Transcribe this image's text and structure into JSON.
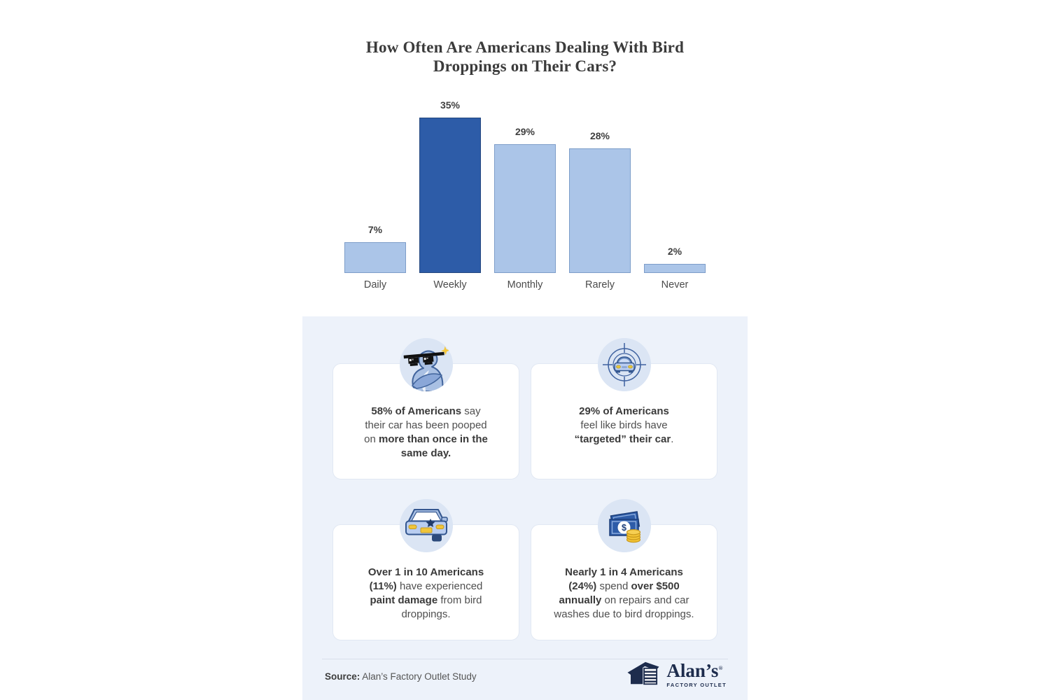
{
  "chart_data": {
    "type": "bar",
    "title": "How Often Are Americans Dealing With Bird Droppings on Their Cars?",
    "categories": [
      "Daily",
      "Weekly",
      "Monthly",
      "Rarely",
      "Never"
    ],
    "values": [
      7,
      35,
      29,
      28,
      2
    ],
    "value_labels": [
      "7%",
      "35%",
      "29%",
      "28%",
      "2%"
    ],
    "highlight_index": 1,
    "bar_color": "#abc5e8",
    "bar_border": "#7d9dc9",
    "highlight_color": "#2d5ca8",
    "highlight_border": "#24477e",
    "xlabel": "",
    "ylabel": "",
    "ylim": [
      0,
      35
    ],
    "grid": false,
    "legend": false
  },
  "cards": [
    {
      "icon": "pigeon-sunglasses-icon",
      "segments": [
        {
          "t": "58% of Americans",
          "b": true
        },
        {
          "t": " say",
          "b": false,
          "br": true
        },
        {
          "t": "their car has been pooped",
          "b": false,
          "br": true
        },
        {
          "t": "on ",
          "b": false
        },
        {
          "t": "more than once in the",
          "b": true,
          "br": true
        },
        {
          "t": "same day.",
          "b": true
        }
      ]
    },
    {
      "icon": "car-target-icon",
      "segments": [
        {
          "t": "29% of Americans",
          "b": true,
          "br": true
        },
        {
          "t": "feel like birds have",
          "b": false,
          "br": true
        },
        {
          "t": "“targeted” their car",
          "b": true
        },
        {
          "t": ".",
          "b": false
        }
      ]
    },
    {
      "icon": "car-paint-damage-icon",
      "segments": [
        {
          "t": "Over 1 in 10 Americans",
          "b": true,
          "br": true
        },
        {
          "t": "(11%)",
          "b": true
        },
        {
          "t": " have experienced",
          "b": false,
          "br": true
        },
        {
          "t": "paint damage",
          "b": true
        },
        {
          "t": " from bird",
          "b": false,
          "br": true
        },
        {
          "t": "droppings.",
          "b": false
        }
      ]
    },
    {
      "icon": "money-icon",
      "segments": [
        {
          "t": "Nearly 1 in 4 Americans",
          "b": true,
          "br": true
        },
        {
          "t": "(24%)",
          "b": true
        },
        {
          "t": " spend ",
          "b": false
        },
        {
          "t": "over $500",
          "b": true,
          "br": true
        },
        {
          "t": "annually",
          "b": true
        },
        {
          "t": " on repairs and car",
          "b": false,
          "br": true
        },
        {
          "t": "washes due to bird droppings.",
          "b": false
        }
      ]
    }
  ],
  "footer": {
    "source_label": "Source:",
    "source_text": " Alan’s Factory Outlet Study",
    "logo_name": "Alan’s",
    "logo_reg": "®",
    "logo_sub": "FACTORY OUTLET"
  }
}
